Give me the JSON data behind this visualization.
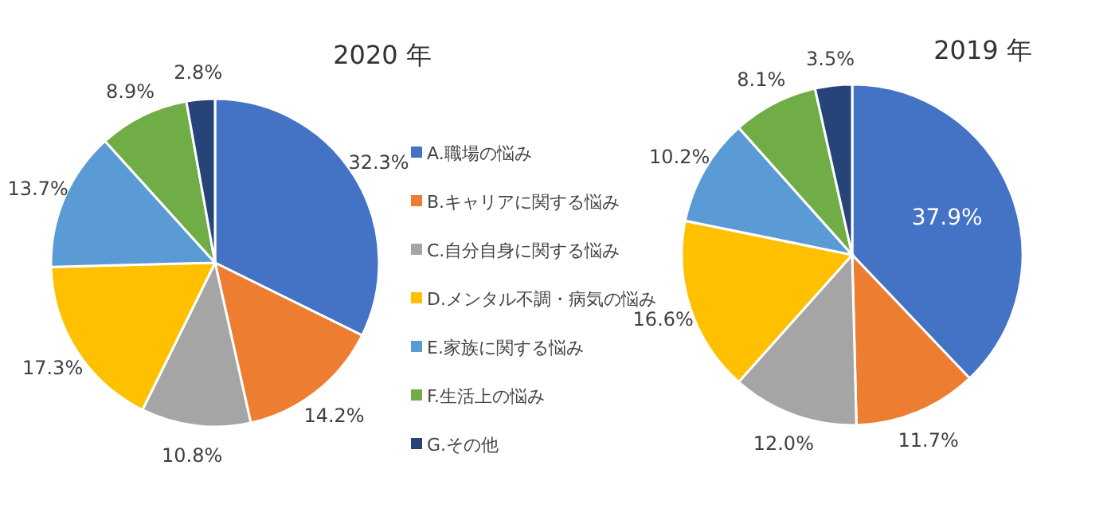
{
  "chart_data": [
    {
      "type": "pie",
      "title": "2020 年",
      "categories": [
        "A.職場の悩み",
        "B.キャリアに関する悩み",
        "C.自分自身に関する悩み",
        "D.メンタル不調・病気の悩み",
        "E.家族に関する悩み",
        "F.生活上の悩み",
        "G.その他"
      ],
      "values": [
        32.3,
        14.2,
        10.8,
        17.3,
        13.7,
        8.9,
        2.8
      ],
      "colors": [
        "#4472c4",
        "#ed7d31",
        "#a5a5a5",
        "#ffc000",
        "#5b9bd5",
        "#70ad47",
        "#264478"
      ],
      "value_labels": [
        "32.3%",
        "14.2%",
        "10.8%",
        "17.3%",
        "13.7%",
        "8.9%",
        "2.8%"
      ],
      "legend": "right"
    },
    {
      "type": "pie",
      "title": "2019 年",
      "categories": [
        null,
        null,
        null,
        null,
        null,
        null,
        null
      ],
      "values": [
        37.9,
        11.7,
        12.0,
        16.6,
        10.2,
        8.1,
        3.5
      ],
      "colors": [
        "#4472c4",
        "#ed7d31",
        "#a5a5a5",
        "#ffc000",
        "#5b9bd5",
        "#70ad47",
        "#264478"
      ],
      "value_labels": [
        "37.9%",
        "11.7%",
        "12.0%",
        "16.6%",
        "10.2%",
        "8.1%",
        "3.5%"
      ]
    }
  ]
}
